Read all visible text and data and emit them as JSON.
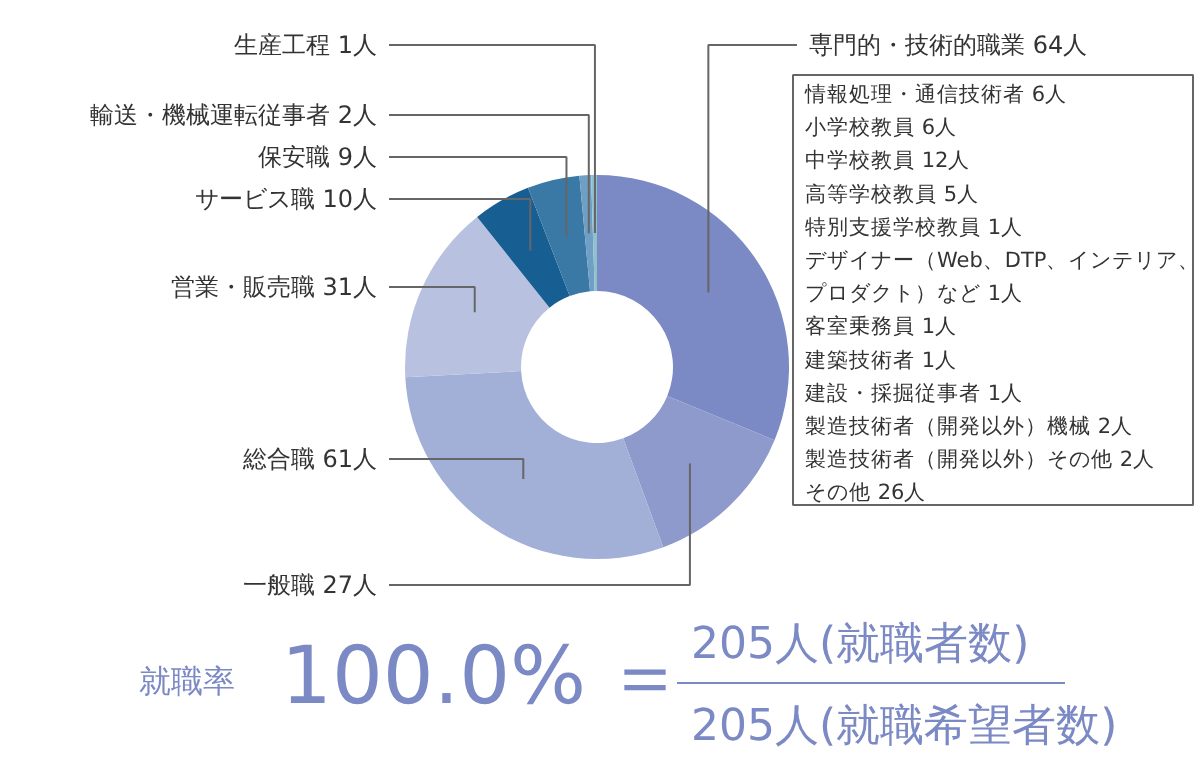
{
  "chart_data": {
    "type": "donut",
    "categories": [
      "専門的・技術的職業",
      "一般職",
      "総合職",
      "営業・販売職",
      "サービス職",
      "保安職",
      "輸送・機械運転従事者",
      "生産工程"
    ],
    "values": [
      64,
      27,
      61,
      31,
      10,
      9,
      2,
      1
    ],
    "value_labels": [
      "64人",
      "27人",
      "61人",
      "31人",
      "10人",
      "9人",
      "2人",
      "1人"
    ],
    "colors": [
      "#7b89c4",
      "#8d9acb",
      "#a2b0d8",
      "#b8c2e0",
      "#175e93",
      "#3a78a6",
      "#6f9fc4",
      "#8fc0cc"
    ],
    "annotations": [
      "情報処理・通信技術者 6人",
      "小学校教員 6人",
      "中学校教員 12人",
      "高等学校教員 5人",
      "特別支援学校教員 1人",
      "デザイナー（Web、DTP、インテリア、",
      "プロダクト）など 1人",
      "客室乗務員 1人",
      "建築技術者 1人",
      "建設・採掘従事者 1人",
      "製造技術者（開発以外）機械 2人",
      "製造技術者（開発以外）その他 2人",
      "その他 26人",
      "就職率",
      "100.0%",
      "＝",
      "205人(就職者数)",
      "205人(就職希望者数)"
    ]
  }
}
